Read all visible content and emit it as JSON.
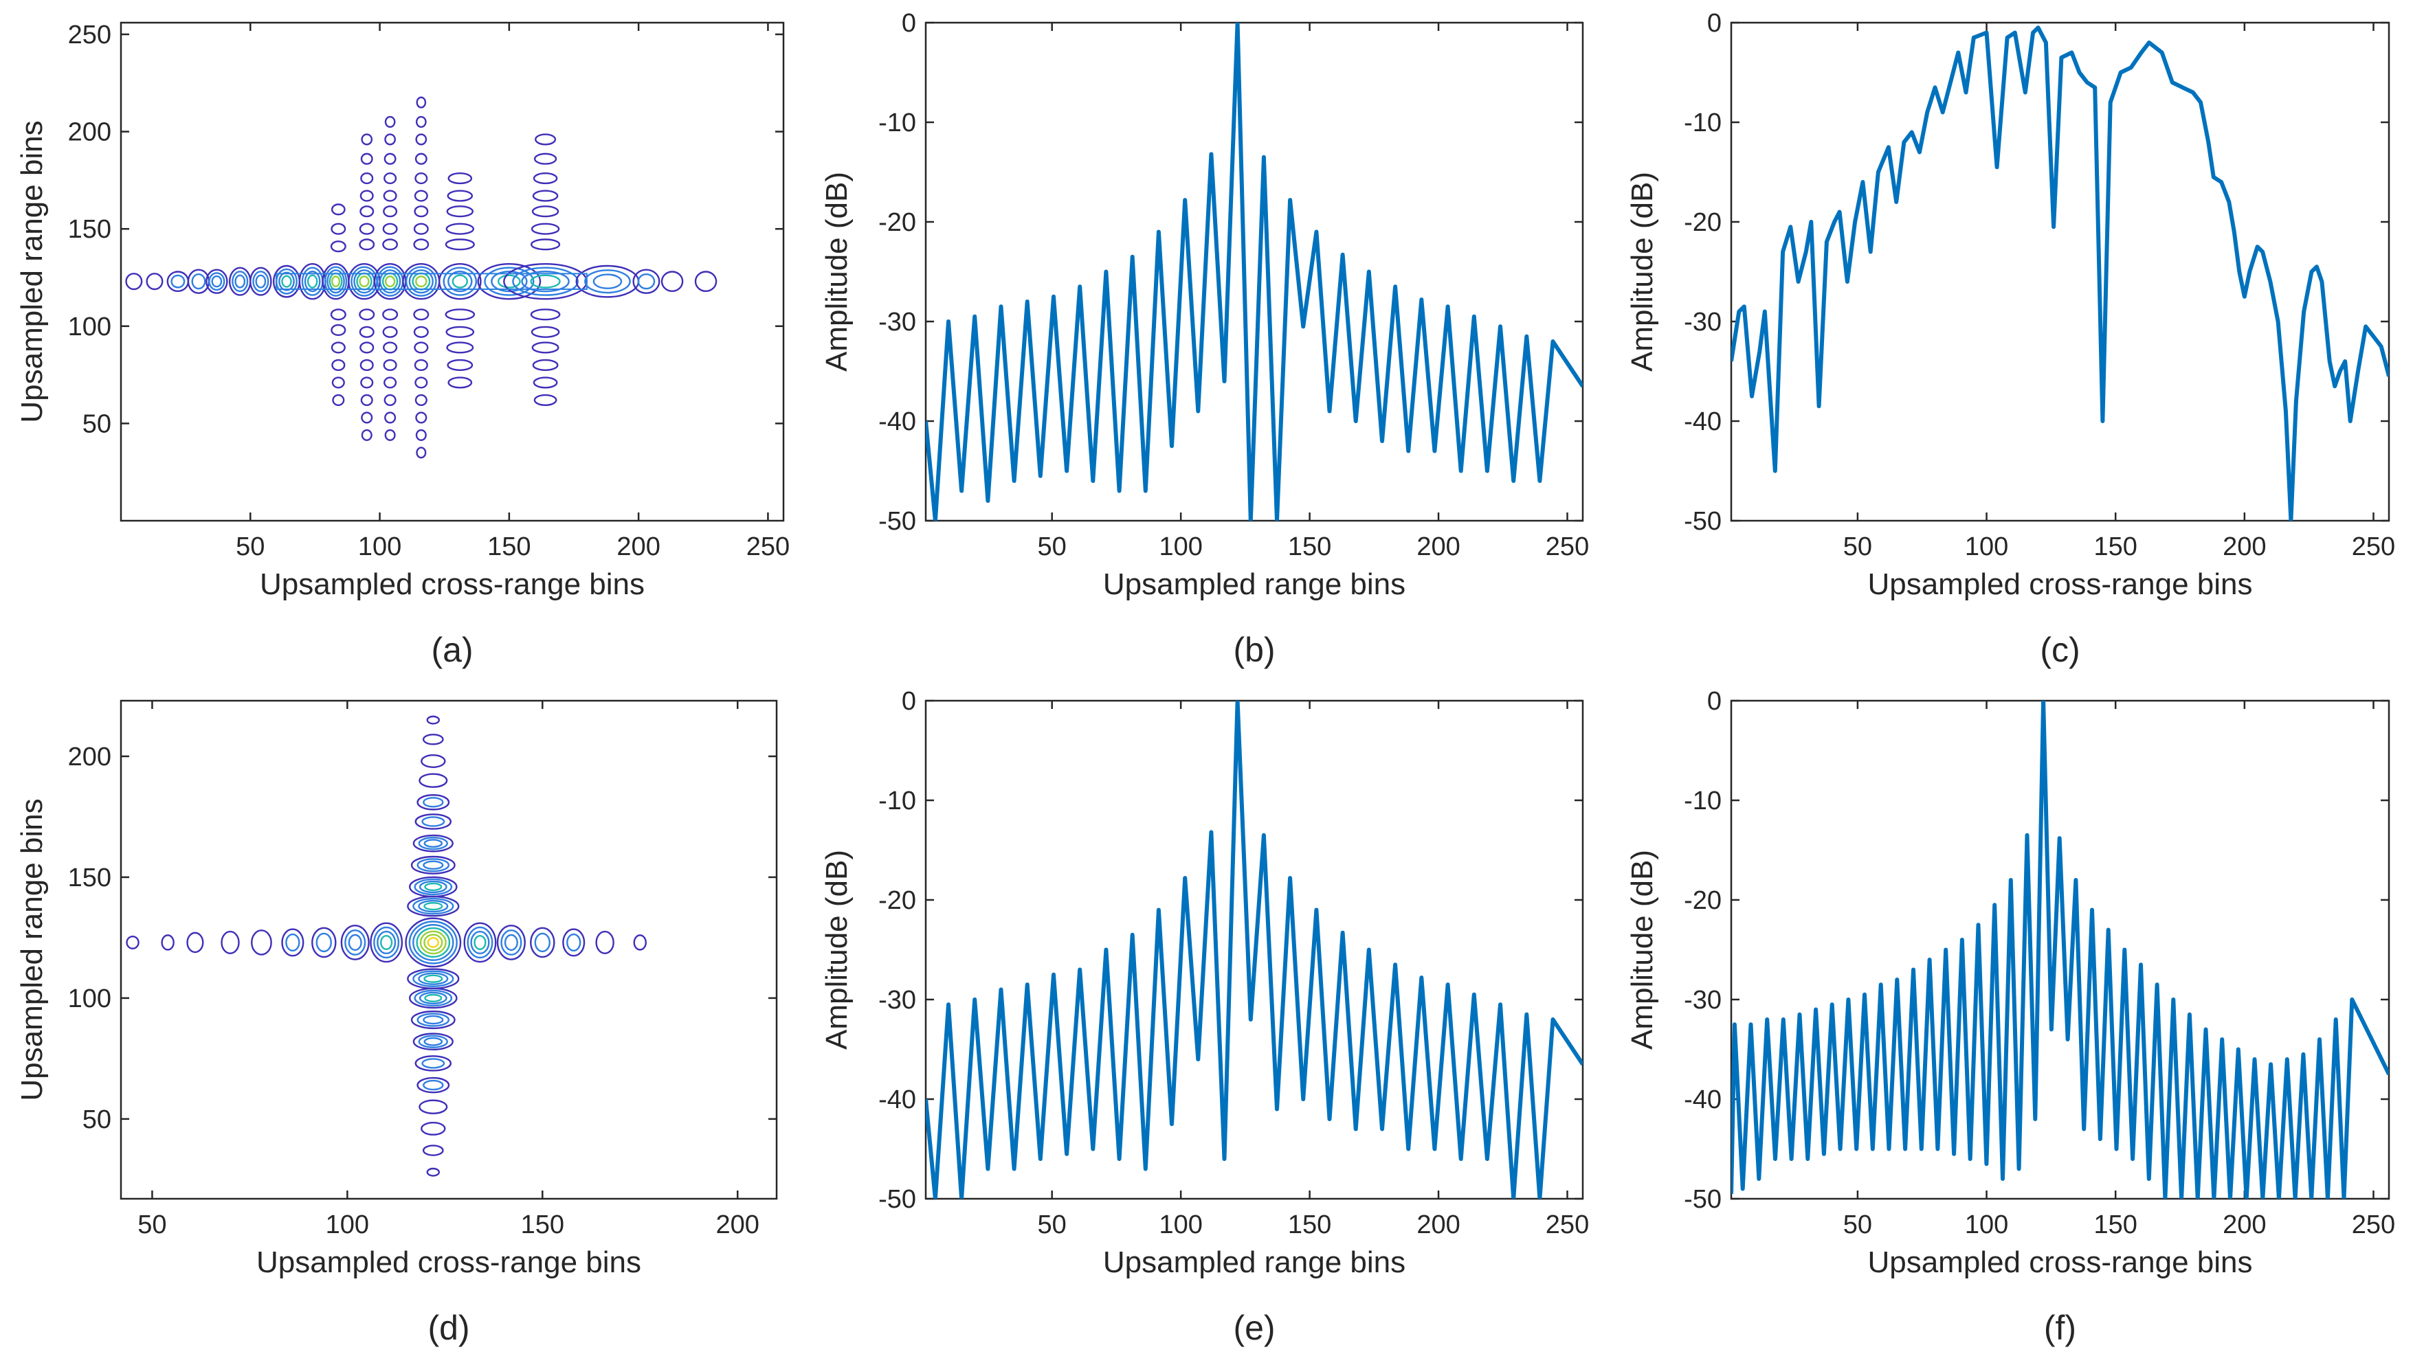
{
  "chart_data": [
    {
      "id": "a",
      "type": "contour",
      "caption": "(a)",
      "xlabel": "Upsampled cross-range bins",
      "ylabel": "Upsampled range bins",
      "xlim": [
        0,
        256
      ],
      "ylim": [
        0,
        256
      ],
      "xticks": [
        50,
        100,
        150,
        200,
        250
      ],
      "yticks": [
        50,
        100,
        150,
        200,
        250
      ],
      "contour_colors": [
        "#3f2fb8",
        "#2f7fe0",
        "#1eb8b0",
        "#98cf3a",
        "#f6d31a"
      ],
      "center_row": 123,
      "row_lobes": [
        {
          "x": 5,
          "w": 3,
          "h": 4,
          "levels": 1
        },
        {
          "x": 13,
          "w": 3,
          "h": 4,
          "levels": 1
        },
        {
          "x": 22,
          "w": 4,
          "h": 5,
          "levels": 2
        },
        {
          "x": 30,
          "w": 4,
          "h": 6,
          "levels": 2
        },
        {
          "x": 37,
          "w": 4,
          "h": 6,
          "levels": 3
        },
        {
          "x": 46,
          "w": 4,
          "h": 7,
          "levels": 3
        },
        {
          "x": 54,
          "w": 4,
          "h": 7,
          "levels": 3
        },
        {
          "x": 64,
          "w": 5,
          "h": 8,
          "levels": 4
        },
        {
          "x": 74,
          "w": 5,
          "h": 9,
          "levels": 4
        },
        {
          "x": 83,
          "w": 5,
          "h": 9,
          "levels": 5
        },
        {
          "x": 94,
          "w": 6,
          "h": 9,
          "levels": 5
        },
        {
          "x": 104,
          "w": 6,
          "h": 9,
          "levels": 5
        },
        {
          "x": 116,
          "w": 7,
          "h": 9,
          "levels": 5
        },
        {
          "x": 131,
          "w": 8,
          "h": 9,
          "levels": 4
        },
        {
          "x": 150,
          "w": 12,
          "h": 9,
          "levels": 4
        },
        {
          "x": 164,
          "w": 16,
          "h": 9,
          "levels": 4
        },
        {
          "x": 188,
          "w": 12,
          "h": 8,
          "levels": 3
        },
        {
          "x": 203,
          "w": 5,
          "h": 6,
          "levels": 2
        },
        {
          "x": 213,
          "w": 4,
          "h": 5,
          "levels": 1
        },
        {
          "x": 226,
          "w": 4,
          "h": 5,
          "levels": 1
        }
      ],
      "columns": [
        {
          "x": 84,
          "rows": [
            160,
            150,
            141,
            106,
            98,
            89,
            80,
            71,
            62
          ],
          "w": 3
        },
        {
          "x": 95,
          "rows": [
            196,
            186,
            176,
            167,
            159,
            150,
            142,
            106,
            97,
            89,
            80,
            71,
            62,
            53,
            44
          ],
          "w": 3
        },
        {
          "x": 104,
          "rows": [
            205,
            196,
            186,
            176,
            167,
            159,
            150,
            142,
            106,
            97,
            89,
            80,
            71,
            62,
            53,
            44
          ],
          "w": 3
        },
        {
          "x": 116,
          "rows": [
            215,
            205,
            196,
            186,
            176,
            167,
            159,
            150,
            142,
            106,
            97,
            89,
            80,
            71,
            62,
            53,
            44,
            35
          ],
          "w": 3
        },
        {
          "x": 131,
          "rows": [
            176,
            167,
            159,
            150,
            142,
            106,
            97,
            89,
            80,
            71
          ],
          "w": 6
        },
        {
          "x": 164,
          "rows": [
            196,
            186,
            176,
            167,
            159,
            150,
            142,
            106,
            97,
            89,
            80,
            71,
            62
          ],
          "w": 6
        }
      ]
    },
    {
      "id": "b",
      "type": "line",
      "caption": "(b)",
      "xlabel": "Upsampled range bins",
      "ylabel": "Amplitude (dB)",
      "xlim": [
        1,
        256
      ],
      "ylim": [
        -50,
        0
      ],
      "xticks": [
        50,
        100,
        150,
        200,
        250
      ],
      "yticks": [
        0,
        -10,
        -20,
        -30,
        -40,
        -50
      ],
      "center": 122,
      "spacing": 10.2,
      "peaks": [
        -32,
        -30.5,
        -30,
        -29.5,
        -28.5,
        -28,
        -27.5,
        -26.5,
        -25,
        -23.5,
        -21,
        -17.8,
        -13.2,
        0,
        -13.5,
        -17.8,
        -21,
        -23.3,
        -25,
        -26.5,
        -27.8,
        -28.5,
        -29.5,
        -30.5,
        -31.5,
        -32
      ],
      "nulls": [
        -50,
        -50,
        -47,
        -48,
        -46,
        -45.5,
        -45,
        -46,
        -47,
        -47,
        -42.5,
        -39,
        -36,
        -50,
        -50,
        -30.5,
        -39,
        -40,
        -42,
        -43,
        -43,
        -45,
        -45,
        -46,
        -46,
        -50,
        -50,
        -36
      ],
      "start": -40,
      "end": -36.5
    },
    {
      "id": "c",
      "type": "line",
      "caption": "(c)",
      "xlabel": "Upsampled cross-range bins",
      "ylabel": "Amplitude (dB)",
      "xlim": [
        1,
        256
      ],
      "ylim": [
        -50,
        0
      ],
      "xticks": [
        50,
        100,
        150,
        200,
        250
      ],
      "yticks": [
        0,
        -10,
        -20,
        -30,
        -40,
        -50
      ],
      "points": [
        [
          1,
          -34
        ],
        [
          4,
          -29
        ],
        [
          6,
          -28.5
        ],
        [
          9,
          -37.5
        ],
        [
          12,
          -33
        ],
        [
          14,
          -29
        ],
        [
          18,
          -45
        ],
        [
          21,
          -23
        ],
        [
          24,
          -20.5
        ],
        [
          27,
          -26
        ],
        [
          30,
          -23
        ],
        [
          32,
          -20
        ],
        [
          35,
          -38.5
        ],
        [
          38,
          -22
        ],
        [
          41,
          -20
        ],
        [
          43,
          -19
        ],
        [
          46,
          -26
        ],
        [
          49,
          -20
        ],
        [
          52,
          -16
        ],
        [
          55,
          -23
        ],
        [
          58,
          -15
        ],
        [
          62,
          -12.5
        ],
        [
          65,
          -18
        ],
        [
          68,
          -12
        ],
        [
          71,
          -11
        ],
        [
          74,
          -13
        ],
        [
          77,
          -9
        ],
        [
          80,
          -6.5
        ],
        [
          83,
          -9
        ],
        [
          86,
          -6
        ],
        [
          89,
          -3
        ],
        [
          92,
          -7
        ],
        [
          95,
          -1.5
        ],
        [
          100,
          -1
        ],
        [
          104,
          -14.5
        ],
        [
          108,
          -1.5
        ],
        [
          111,
          -1
        ],
        [
          115,
          -7
        ],
        [
          118,
          -1
        ],
        [
          120,
          -0.5
        ],
        [
          123,
          -2
        ],
        [
          126,
          -20.5
        ],
        [
          129,
          -3.5
        ],
        [
          133,
          -3
        ],
        [
          136,
          -5
        ],
        [
          139,
          -6
        ],
        [
          142,
          -6.5
        ],
        [
          145,
          -40
        ],
        [
          148,
          -8
        ],
        [
          152,
          -5
        ],
        [
          156,
          -4.5
        ],
        [
          160,
          -3
        ],
        [
          163,
          -2
        ],
        [
          168,
          -3
        ],
        [
          172,
          -6
        ],
        [
          176,
          -6.5
        ],
        [
          180,
          -7
        ],
        [
          183,
          -8
        ],
        [
          186,
          -12
        ],
        [
          188,
          -15.5
        ],
        [
          191,
          -16
        ],
        [
          194,
          -18
        ],
        [
          196,
          -21
        ],
        [
          198,
          -25
        ],
        [
          200,
          -27.5
        ],
        [
          202,
          -25
        ],
        [
          205,
          -22.5
        ],
        [
          207,
          -23
        ],
        [
          210,
          -26
        ],
        [
          213,
          -30
        ],
        [
          216,
          -39
        ],
        [
          218,
          -50
        ],
        [
          220,
          -38
        ],
        [
          223,
          -29
        ],
        [
          226,
          -25
        ],
        [
          228,
          -24.5
        ],
        [
          230,
          -26
        ],
        [
          233,
          -34
        ],
        [
          235,
          -36.5
        ],
        [
          237,
          -35
        ],
        [
          239,
          -34
        ],
        [
          241,
          -40
        ],
        [
          244,
          -35
        ],
        [
          247,
          -30.5
        ],
        [
          250,
          -31.5
        ],
        [
          253,
          -32.5
        ],
        [
          256,
          -35.5
        ]
      ]
    },
    {
      "id": "d",
      "type": "contour",
      "caption": "(d)",
      "xlabel": "Upsampled cross-range bins",
      "ylabel": "Upsampled range bins",
      "xlim": [
        42,
        210
      ],
      "ylim": [
        17,
        223
      ],
      "xticks": [
        50,
        100,
        150,
        200
      ],
      "yticks": [
        50,
        100,
        150,
        200
      ],
      "contour_colors": [
        "#3f2fb8",
        "#2f7fe0",
        "#1eb8b0",
        "#98cf3a",
        "#f6d31a"
      ],
      "center": [
        122,
        123
      ],
      "main_lobe": {
        "w": 7,
        "h": 10,
        "levels": 7
      },
      "x_lobes": [
        {
          "x": 45,
          "w": 1.5,
          "h": 2.5,
          "levels": 1
        },
        {
          "x": 54,
          "w": 1.5,
          "h": 3,
          "levels": 1
        },
        {
          "x": 61,
          "w": 2,
          "h": 4,
          "levels": 1
        },
        {
          "x": 70,
          "w": 2.2,
          "h": 4.5,
          "levels": 1
        },
        {
          "x": 78,
          "w": 2.5,
          "h": 5,
          "levels": 1
        },
        {
          "x": 86,
          "w": 2.7,
          "h": 5.5,
          "levels": 2
        },
        {
          "x": 94,
          "w": 3,
          "h": 6,
          "levels": 2
        },
        {
          "x": 102,
          "w": 3.5,
          "h": 7,
          "levels": 3
        },
        {
          "x": 110,
          "w": 4,
          "h": 8,
          "levels": 4
        },
        {
          "x": 134,
          "w": 4,
          "h": 8,
          "levels": 4
        },
        {
          "x": 142,
          "w": 3.5,
          "h": 7,
          "levels": 3
        },
        {
          "x": 150,
          "w": 3,
          "h": 6,
          "levels": 2
        },
        {
          "x": 158,
          "w": 2.7,
          "h": 5.5,
          "levels": 2
        },
        {
          "x": 166,
          "w": 2.2,
          "h": 4.5,
          "levels": 1
        },
        {
          "x": 175,
          "w": 1.5,
          "h": 3,
          "levels": 1
        }
      ],
      "y_lobes": [
        {
          "y": 215,
          "w": 1.5,
          "h": 1.5,
          "levels": 1
        },
        {
          "y": 207,
          "w": 2.5,
          "h": 2,
          "levels": 1
        },
        {
          "y": 198,
          "w": 3,
          "h": 2.5,
          "levels": 1
        },
        {
          "y": 190,
          "w": 3.5,
          "h": 2.7,
          "levels": 1
        },
        {
          "y": 181,
          "w": 4,
          "h": 3,
          "levels": 2
        },
        {
          "y": 173,
          "w": 4.5,
          "h": 3,
          "levels": 2
        },
        {
          "y": 164,
          "w": 5,
          "h": 3.3,
          "levels": 3
        },
        {
          "y": 155,
          "w": 5.5,
          "h": 3.5,
          "levels": 3
        },
        {
          "y": 146,
          "w": 6,
          "h": 4,
          "levels": 4
        },
        {
          "y": 138,
          "w": 6.5,
          "h": 4,
          "levels": 4
        },
        {
          "y": 108,
          "w": 6.5,
          "h": 4,
          "levels": 4
        },
        {
          "y": 100,
          "w": 6,
          "h": 4,
          "levels": 4
        },
        {
          "y": 91,
          "w": 5.5,
          "h": 3.5,
          "levels": 3
        },
        {
          "y": 82,
          "w": 5,
          "h": 3.3,
          "levels": 3
        },
        {
          "y": 73,
          "w": 4.5,
          "h": 3,
          "levels": 2
        },
        {
          "y": 64,
          "w": 4,
          "h": 3,
          "levels": 2
        },
        {
          "y": 55,
          "w": 3.5,
          "h": 2.7,
          "levels": 1
        },
        {
          "y": 46,
          "w": 3,
          "h": 2.5,
          "levels": 1
        },
        {
          "y": 37,
          "w": 2.5,
          "h": 2,
          "levels": 1
        },
        {
          "y": 28,
          "w": 1.5,
          "h": 1.5,
          "levels": 1
        }
      ]
    },
    {
      "id": "e",
      "type": "line",
      "caption": "(e)",
      "xlabel": "Upsampled range bins",
      "ylabel": "Amplitude (dB)",
      "xlim": [
        1,
        256
      ],
      "ylim": [
        -50,
        0
      ],
      "xticks": [
        50,
        100,
        150,
        200,
        250
      ],
      "yticks": [
        0,
        -10,
        -20,
        -30,
        -40,
        -50
      ],
      "center": 122,
      "spacing": 10.2,
      "peaks": [
        -32,
        -30.5,
        -30,
        -29,
        -28.5,
        -27.5,
        -27,
        -25,
        -23.5,
        -21,
        -17.8,
        -13.2,
        0,
        -13.5,
        -17.8,
        -21,
        -23.3,
        -25,
        -26.5,
        -27.8,
        -28.5,
        -29.5,
        -30.5,
        -31.5,
        -32
      ],
      "nulls": [
        -50,
        -50,
        -47,
        -47,
        -46,
        -45.5,
        -45,
        -46,
        -47,
        -42.5,
        -36,
        -46,
        -32,
        -41,
        -40,
        -42,
        -43,
        -43,
        -45,
        -45,
        -46,
        -46,
        -50,
        -50,
        -36
      ],
      "start": -40,
      "end": -36.5
    },
    {
      "id": "f",
      "type": "line",
      "caption": "(f)",
      "xlabel": "Upsampled cross-range bins",
      "ylabel": "Amplitude (dB)",
      "xlim": [
        1,
        256
      ],
      "ylim": [
        -50,
        0
      ],
      "xticks": [
        50,
        100,
        150,
        200,
        250
      ],
      "yticks": [
        0,
        -10,
        -20,
        -30,
        -40,
        -50
      ],
      "center": 122,
      "spacing": 6.3,
      "peaks": [
        -32.5,
        -32.5,
        -32,
        -32,
        -31.5,
        -31,
        -30.5,
        -30,
        -29.5,
        -28.5,
        -28,
        -27,
        -26,
        -25,
        -24,
        -22.5,
        -20.5,
        -18,
        -13.5,
        0,
        -13.8,
        -18,
        -21,
        -23,
        -25,
        -26.5,
        -28.5,
        -30,
        -31.5,
        -33,
        -34,
        -35,
        -36,
        -36.5,
        -36,
        -35.5,
        -34,
        -32,
        -30
      ],
      "nulls": [
        -49,
        -48,
        -46,
        -46,
        -46,
        -45.5,
        -45,
        -45,
        -45,
        -45,
        -45,
        -45,
        -45,
        -45.5,
        -46,
        -46.5,
        -48,
        -47,
        -42,
        -33,
        -34,
        -43,
        -44,
        -45,
        -46,
        -48,
        -50,
        -50,
        -50,
        -50,
        -50,
        -50,
        -50,
        -50,
        -50,
        -50,
        -50,
        -50
      ],
      "start": -49.5,
      "end": -37.5
    }
  ]
}
